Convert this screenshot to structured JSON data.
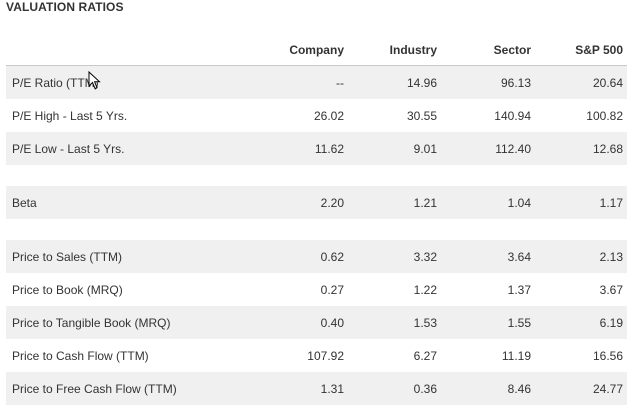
{
  "title": "VALUATION RATIOS",
  "columns": [
    "",
    "Company",
    "Industry",
    "Sector",
    "S&P 500"
  ],
  "groups": [
    {
      "rows": [
        {
          "label": "P/E Ratio (TTM)",
          "company": "--",
          "industry": "14.96",
          "sector": "96.13",
          "sp500": "20.64"
        },
        {
          "label": "P/E High - Last 5 Yrs.",
          "company": "26.02",
          "industry": "30.55",
          "sector": "140.94",
          "sp500": "100.82"
        },
        {
          "label": "P/E Low - Last 5 Yrs.",
          "company": "11.62",
          "industry": "9.01",
          "sector": "112.40",
          "sp500": "12.68"
        }
      ]
    },
    {
      "rows": [
        {
          "label": "Beta",
          "company": "2.20",
          "industry": "1.21",
          "sector": "1.04",
          "sp500": "1.17"
        }
      ]
    },
    {
      "rows": [
        {
          "label": "Price to Sales (TTM)",
          "company": "0.62",
          "industry": "3.32",
          "sector": "3.64",
          "sp500": "2.13"
        },
        {
          "label": "Price to Book (MRQ)",
          "company": "0.27",
          "industry": "1.22",
          "sector": "1.37",
          "sp500": "3.67"
        },
        {
          "label": "Price to Tangible Book (MRQ)",
          "company": "0.40",
          "industry": "1.53",
          "sector": "1.55",
          "sp500": "6.19"
        },
        {
          "label": "Price to Cash Flow (TTM)",
          "company": "107.92",
          "industry": "6.27",
          "sector": "11.19",
          "sp500": "16.56"
        },
        {
          "label": "Price to Free Cash Flow (TTM)",
          "company": "1.31",
          "industry": "0.36",
          "sector": "8.46",
          "sp500": "24.77"
        }
      ]
    }
  ],
  "colors": {
    "shade": "#f0f0f0",
    "text": "#333333",
    "rule": "#c8c8c8"
  },
  "icons": {
    "cursor": "mouse-pointer-icon"
  }
}
